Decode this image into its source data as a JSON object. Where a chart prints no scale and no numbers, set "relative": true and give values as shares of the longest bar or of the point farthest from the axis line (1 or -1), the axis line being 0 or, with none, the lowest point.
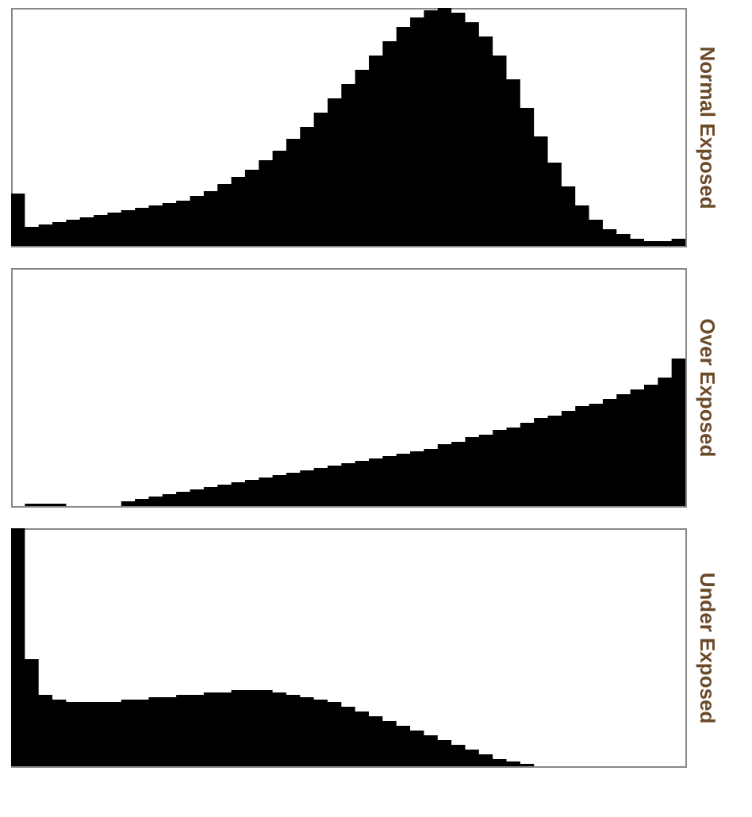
{
  "chart_data": [
    {
      "type": "area",
      "relative": true,
      "ylabel": "Normal Exposed",
      "color": "#000000",
      "categories": [
        null,
        null,
        null,
        null,
        null,
        null,
        null,
        null,
        null,
        null,
        null,
        null,
        null,
        null,
        null,
        null,
        null,
        null,
        null,
        null,
        null,
        null,
        null,
        null,
        null,
        null,
        null,
        null,
        null,
        null,
        null,
        null,
        null,
        null,
        null,
        null,
        null,
        null,
        null,
        null,
        null,
        null,
        null,
        null,
        null,
        null,
        null,
        null,
        null,
        null
      ],
      "values": [
        0.22,
        0.08,
        0.09,
        0.1,
        0.11,
        0.12,
        0.13,
        0.14,
        0.15,
        0.16,
        0.17,
        0.18,
        0.19,
        0.21,
        0.23,
        0.26,
        0.29,
        0.32,
        0.36,
        0.4,
        0.45,
        0.5,
        0.56,
        0.62,
        0.68,
        0.74,
        0.8,
        0.86,
        0.92,
        0.96,
        0.99,
        1.0,
        0.98,
        0.94,
        0.88,
        0.8,
        0.7,
        0.58,
        0.46,
        0.35,
        0.25,
        0.17,
        0.11,
        0.07,
        0.05,
        0.03,
        0.02,
        0.02,
        0.03,
        0.2
      ]
    },
    {
      "type": "area",
      "relative": true,
      "ylabel": "Over Exposed",
      "color": "#000000",
      "categories": [
        null,
        null,
        null,
        null,
        null,
        null,
        null,
        null,
        null,
        null,
        null,
        null,
        null,
        null,
        null,
        null,
        null,
        null,
        null,
        null,
        null,
        null,
        null,
        null,
        null,
        null,
        null,
        null,
        null,
        null,
        null,
        null,
        null,
        null,
        null,
        null,
        null,
        null,
        null,
        null,
        null,
        null,
        null,
        null,
        null,
        null,
        null,
        null,
        null,
        null
      ],
      "values": [
        0,
        0.01,
        0.01,
        0.01,
        0,
        0,
        0,
        0,
        0.02,
        0.03,
        0.04,
        0.05,
        0.06,
        0.07,
        0.08,
        0.09,
        0.1,
        0.11,
        0.12,
        0.13,
        0.14,
        0.15,
        0.16,
        0.17,
        0.18,
        0.19,
        0.2,
        0.21,
        0.22,
        0.23,
        0.24,
        0.26,
        0.27,
        0.29,
        0.3,
        0.32,
        0.33,
        0.35,
        0.37,
        0.38,
        0.4,
        0.42,
        0.43,
        0.45,
        0.47,
        0.49,
        0.51,
        0.54,
        0.62,
        1.0
      ]
    },
    {
      "type": "area",
      "relative": true,
      "ylabel": "Under Exposed",
      "color": "#000000",
      "categories": [
        null,
        null,
        null,
        null,
        null,
        null,
        null,
        null,
        null,
        null,
        null,
        null,
        null,
        null,
        null,
        null,
        null,
        null,
        null,
        null,
        null,
        null,
        null,
        null,
        null,
        null,
        null,
        null,
        null,
        null,
        null,
        null,
        null,
        null,
        null,
        null,
        null,
        null,
        null,
        null,
        null,
        null,
        null,
        null,
        null,
        null,
        null,
        null,
        null,
        null
      ],
      "values": [
        1.0,
        0.45,
        0.3,
        0.28,
        0.27,
        0.27,
        0.27,
        0.27,
        0.28,
        0.28,
        0.29,
        0.29,
        0.3,
        0.3,
        0.31,
        0.31,
        0.32,
        0.32,
        0.32,
        0.31,
        0.3,
        0.29,
        0.28,
        0.27,
        0.25,
        0.23,
        0.21,
        0.19,
        0.17,
        0.15,
        0.13,
        0.11,
        0.09,
        0.07,
        0.05,
        0.03,
        0.02,
        0.01,
        0,
        0,
        0,
        0,
        0,
        0,
        0,
        0,
        0,
        0,
        0,
        0
      ]
    }
  ]
}
